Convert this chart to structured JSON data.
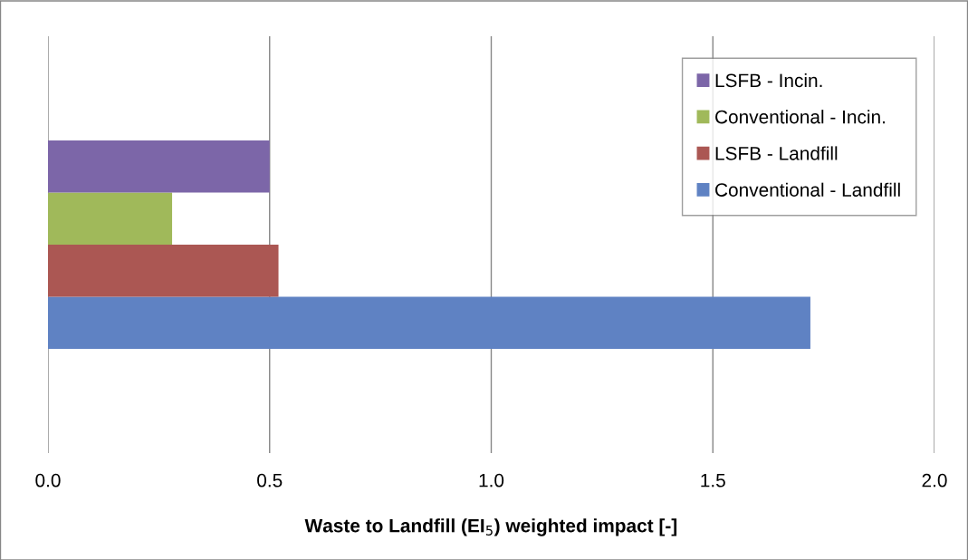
{
  "chart_data": {
    "type": "bar",
    "orientation": "horizontal",
    "categories": [
      null
    ],
    "series": [
      {
        "name": "Conventional - Landfill",
        "color": "#5f82c3",
        "values": [
          1.72
        ]
      },
      {
        "name": "LSFB - Landfill",
        "color": "#ab5753",
        "values": [
          0.52
        ]
      },
      {
        "name": "Conventional - Incin.",
        "color": "#a0b95a",
        "values": [
          0.28
        ]
      },
      {
        "name": "LSFB - Incin.",
        "color": "#7c66a8",
        "values": [
          0.5
        ]
      }
    ],
    "xlabel": "Waste to Landfill (EI$_{5}$) weighted impact [-]",
    "xlim": [
      0,
      2
    ],
    "xticks": [
      {
        "value": 0,
        "label": "0.0"
      },
      {
        "value": 0.5,
        "label": "0.5"
      },
      {
        "value": 1,
        "label": "1.0"
      },
      {
        "value": 1.5,
        "label": "1.5"
      },
      {
        "value": 2,
        "label": "2.0"
      }
    ],
    "grid": "x",
    "legend": "top right"
  }
}
